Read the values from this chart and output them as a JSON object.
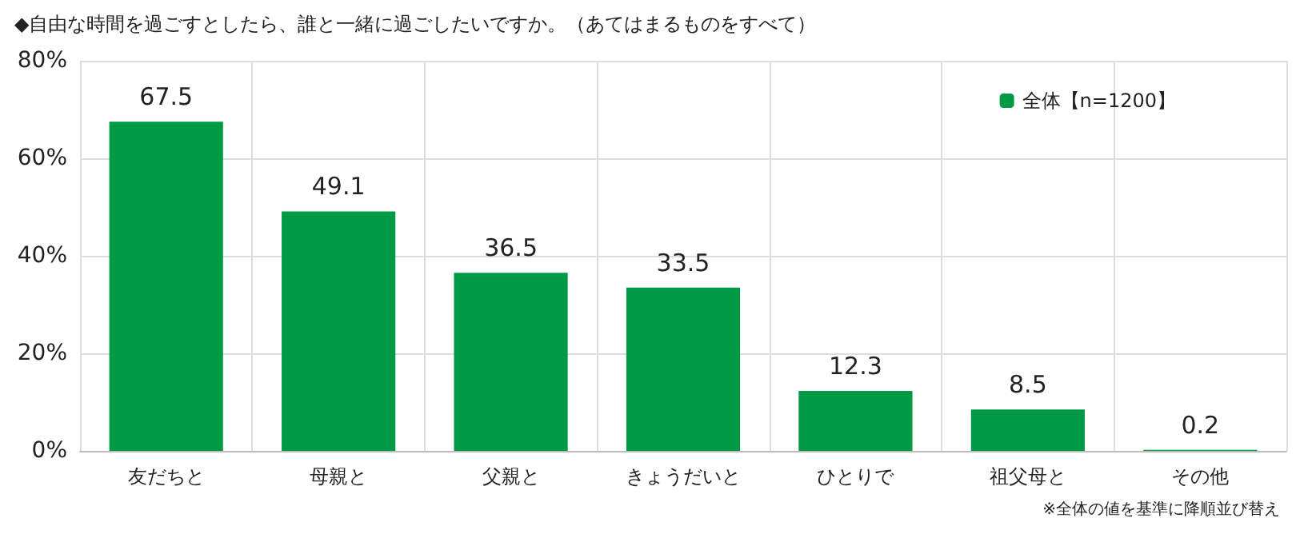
{
  "chart_data": {
    "type": "bar",
    "title": "◆自由な時間を過ごすとしたら、誰と一緒に過ごしたいですか。（あてはまるものをすべて）",
    "categories": [
      "友だちと",
      "母親と",
      "父親と",
      "きょうだいと",
      "ひとりで",
      "祖父母と",
      "その他"
    ],
    "series": [
      {
        "name": "全体【n=1200】",
        "color": "#009944",
        "values": [
          67.5,
          49.1,
          36.5,
          33.5,
          12.3,
          8.5,
          0.2
        ]
      }
    ],
    "ylim": [
      0,
      80
    ],
    "yticks": [
      {
        "value": 0,
        "label": "0%"
      },
      {
        "value": 20,
        "label": "20%"
      },
      {
        "value": 40,
        "label": "40%"
      },
      {
        "value": 60,
        "label": "60%"
      },
      {
        "value": 80,
        "label": "80%"
      }
    ],
    "grid": true,
    "legend": "top right",
    "data_labels": true,
    "annotations": [
      "※全体の値を基準に降順並び替え"
    ]
  }
}
